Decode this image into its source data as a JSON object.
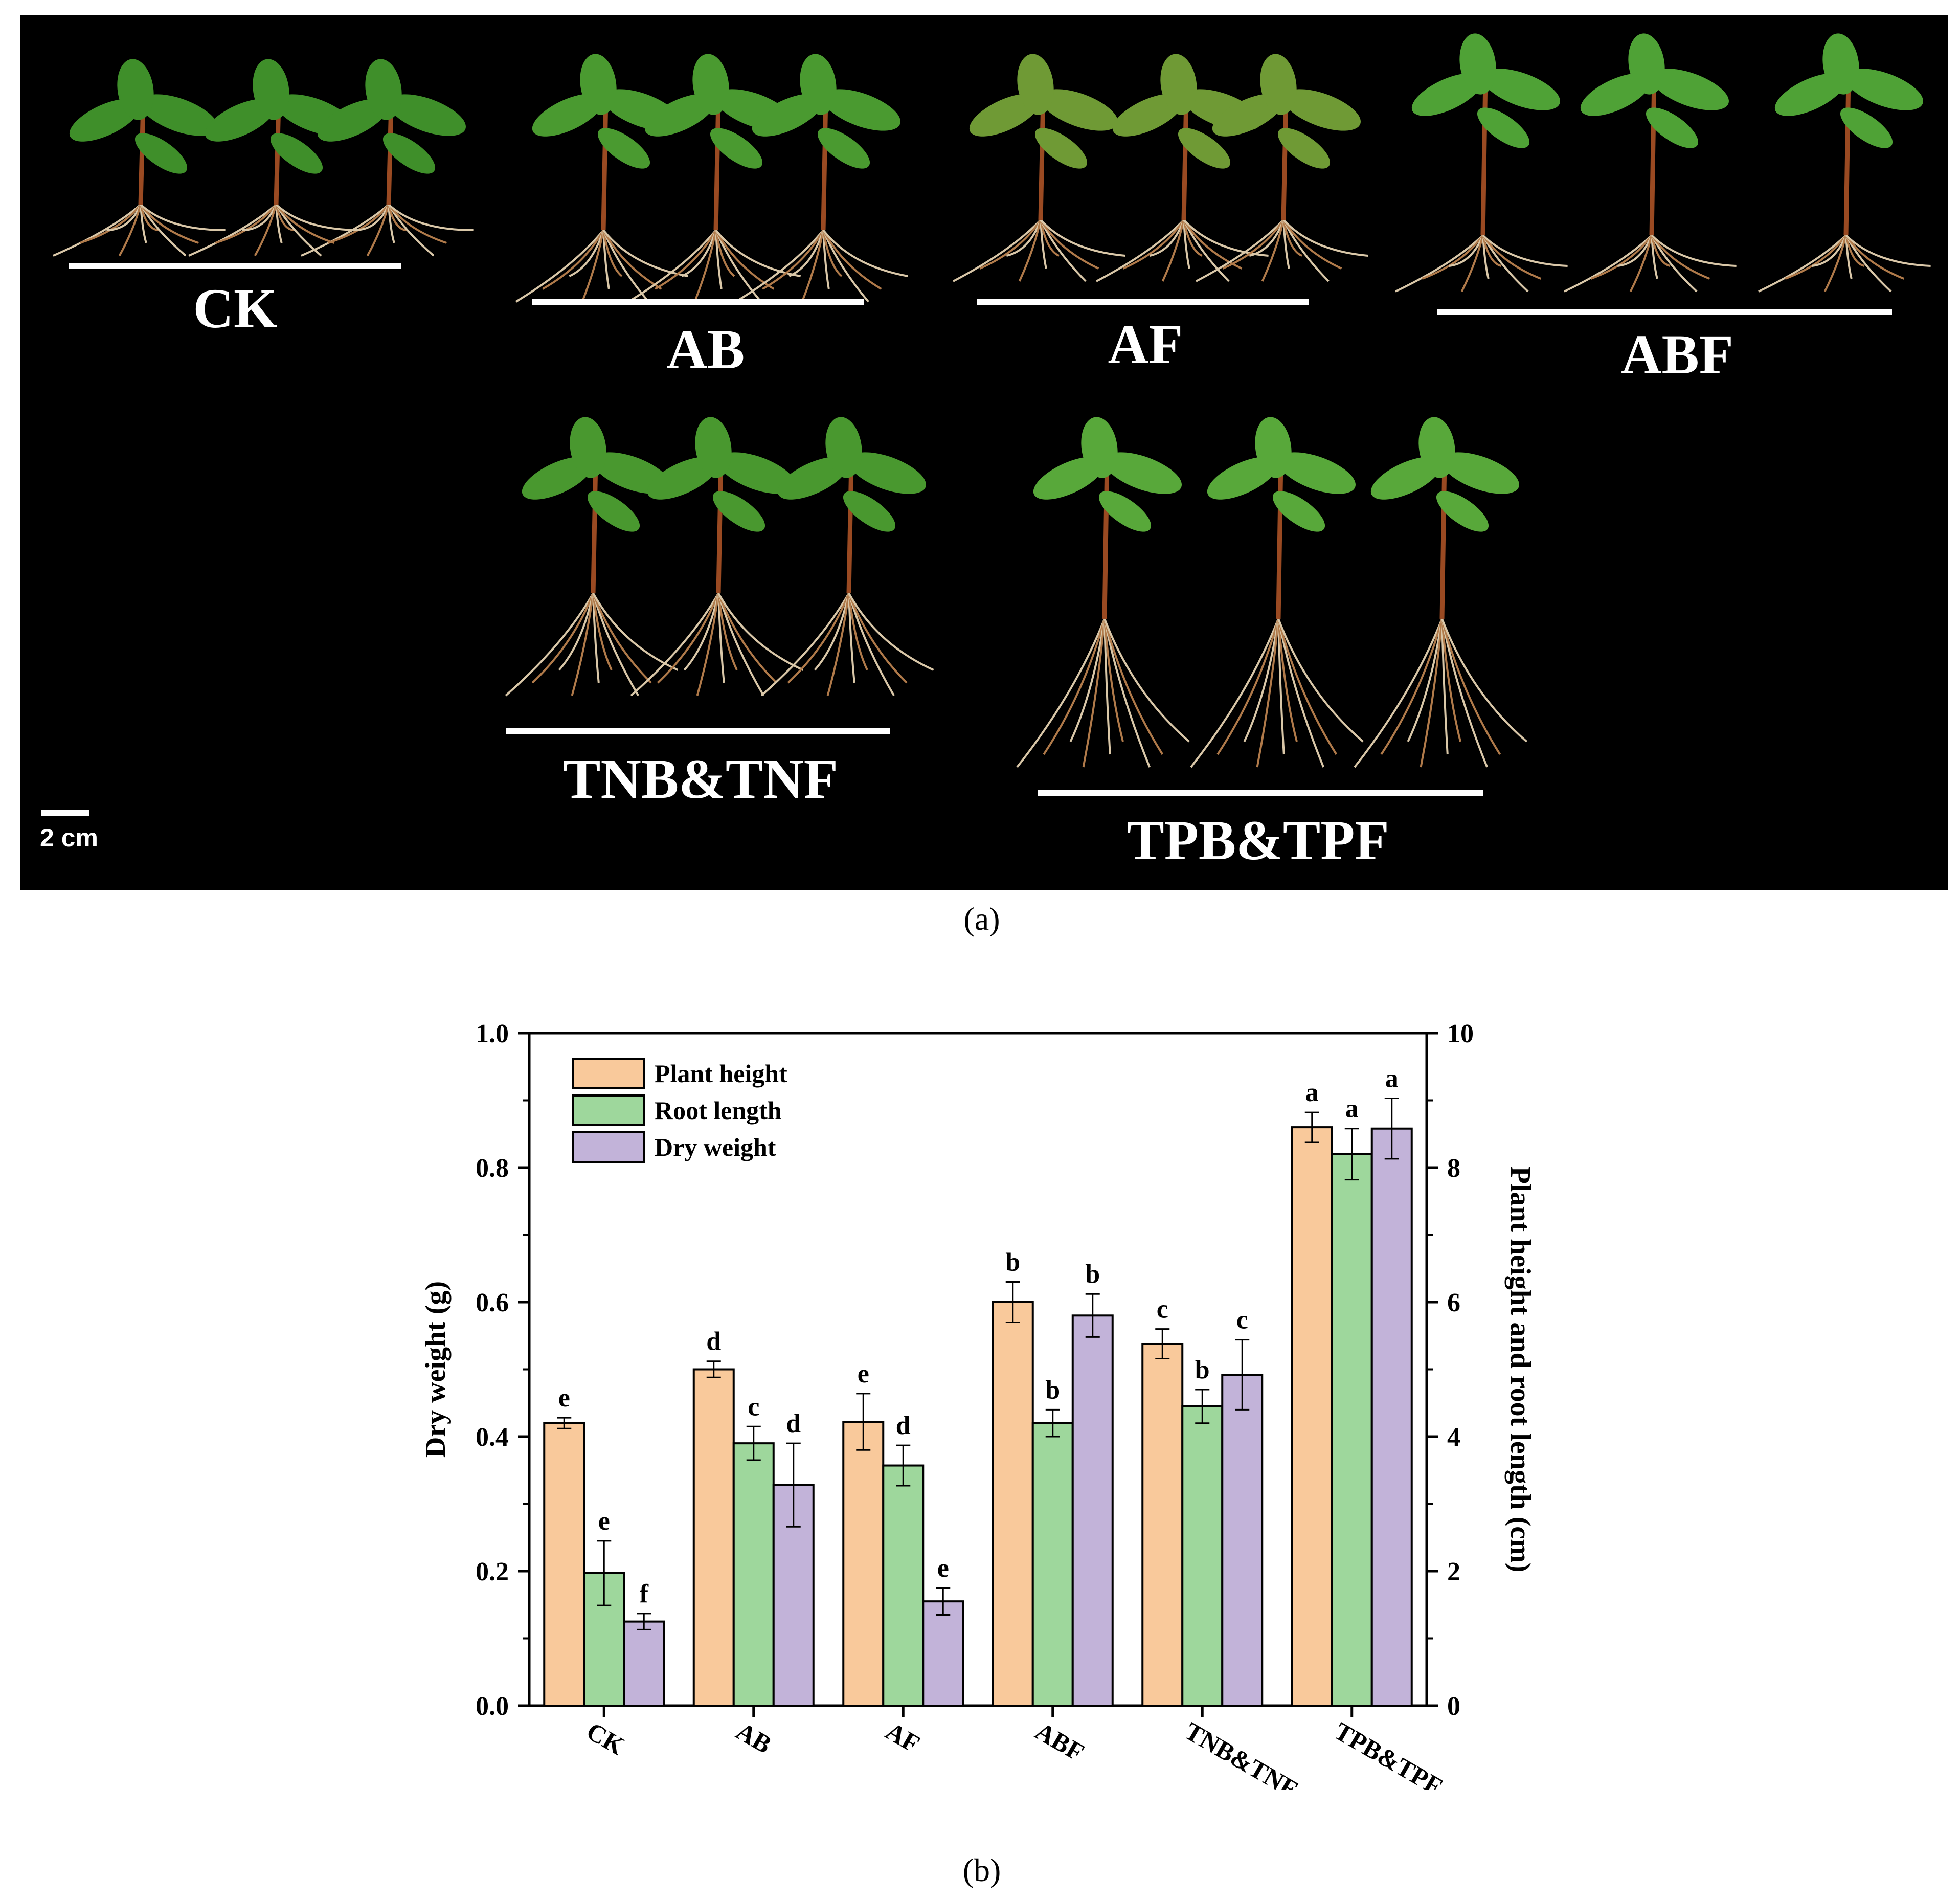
{
  "panel_a": {
    "caption": "(a)",
    "groups": [
      "CK",
      "AB",
      "AF",
      "ABF",
      "TNB&TNF",
      "TPB&TPF"
    ],
    "scale_bar": "2 cm"
  },
  "panel_b": {
    "caption": "(b)"
  },
  "chart_data": {
    "type": "bar",
    "categories": [
      "CK",
      "AB",
      "AF",
      "ABF",
      "TNB&TNF",
      "TPB&TPF"
    ],
    "ylabel_left": "Dry weight (g)",
    "ylabel_right": "Plant height and root length (cm)",
    "ylim_left": [
      0,
      1.0
    ],
    "ylim_right": [
      0,
      10
    ],
    "yticks_left": [
      "0.0",
      "0.2",
      "0.4",
      "0.6",
      "0.8",
      "1.0"
    ],
    "yticks_right": [
      "0",
      "2",
      "4",
      "6",
      "8",
      "10"
    ],
    "legend_position": "top-left",
    "series": [
      {
        "name": "Plant height",
        "axis": "right",
        "color": "#F9C99B",
        "values": [
          4.2,
          5.0,
          4.22,
          6.0,
          5.38,
          8.6
        ],
        "errors": [
          0.08,
          0.12,
          0.42,
          0.3,
          0.22,
          0.22
        ],
        "letters": [
          "e",
          "d",
          "e",
          "b",
          "c",
          "a"
        ]
      },
      {
        "name": "Root length",
        "axis": "right",
        "color": "#9ED79C",
        "values": [
          1.97,
          3.9,
          3.57,
          4.2,
          4.45,
          8.2
        ],
        "errors": [
          0.48,
          0.25,
          0.3,
          0.2,
          0.25,
          0.38
        ],
        "letters": [
          "e",
          "c",
          "d",
          "b",
          "b",
          "a"
        ]
      },
      {
        "name": "Dry weight",
        "axis": "left",
        "color": "#C2B3D9",
        "values": [
          0.125,
          0.328,
          0.155,
          0.58,
          0.492,
          0.858
        ],
        "errors": [
          0.012,
          0.062,
          0.02,
          0.032,
          0.052,
          0.045
        ],
        "letters": [
          "f",
          "d",
          "e",
          "b",
          "c",
          "a"
        ]
      }
    ]
  }
}
